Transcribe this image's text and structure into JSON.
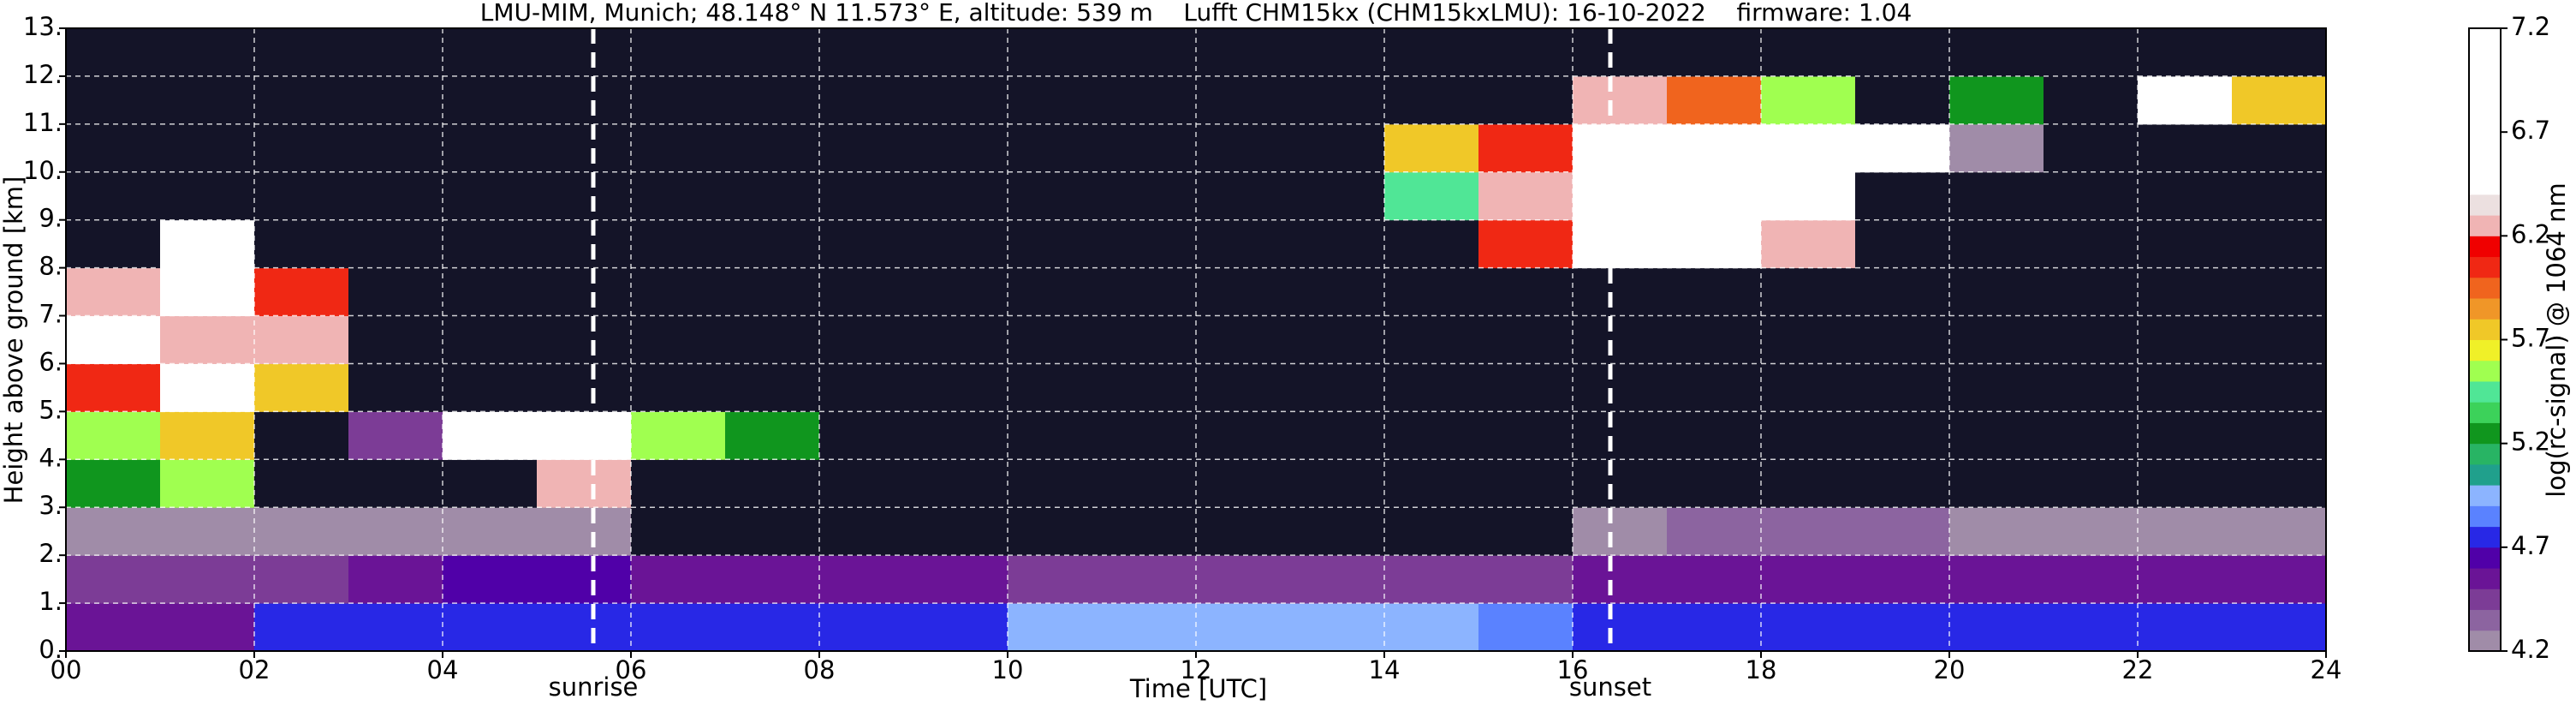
{
  "chart_data": {
    "type": "heatmap",
    "title": "LMU-MIM, Munich; 48.148° N 11.573° E, altitude: 539 m    Lufft CHM15kx (CHM15kxLMU): 16-10-2022    firmware: 1.04",
    "xlabel": "Time [UTC]",
    "ylabel": "Height above ground [km]",
    "colorbar_label": "log(rc-signal) @ 1064 nm",
    "xlim": [
      0,
      24
    ],
    "ylim": [
      0,
      13
    ],
    "xticks": [
      {
        "value": 0,
        "label": "00"
      },
      {
        "value": 2,
        "label": "02"
      },
      {
        "value": 4,
        "label": "04"
      },
      {
        "value": 6,
        "label": "06"
      },
      {
        "value": 8,
        "label": "08"
      },
      {
        "value": 10,
        "label": "10"
      },
      {
        "value": 12,
        "label": "12"
      },
      {
        "value": 14,
        "label": "14"
      },
      {
        "value": 16,
        "label": "16"
      },
      {
        "value": 18,
        "label": "18"
      },
      {
        "value": 20,
        "label": "20"
      },
      {
        "value": 22,
        "label": "22"
      },
      {
        "value": 24,
        "label": "24"
      }
    ],
    "yticks": [
      {
        "value": 0,
        "label": "0."
      },
      {
        "value": 1,
        "label": "1."
      },
      {
        "value": 2,
        "label": "2."
      },
      {
        "value": 3,
        "label": "3."
      },
      {
        "value": 4,
        "label": "4."
      },
      {
        "value": 5,
        "label": "5."
      },
      {
        "value": 6,
        "label": "6."
      },
      {
        "value": 7,
        "label": "7."
      },
      {
        "value": 8,
        "label": "8."
      },
      {
        "value": 9,
        "label": "9."
      },
      {
        "value": 10,
        "label": "10."
      },
      {
        "value": 11,
        "label": "11."
      },
      {
        "value": 12,
        "label": "12."
      },
      {
        "value": 13,
        "label": "13."
      }
    ],
    "grid": true,
    "clim": [
      4.2,
      7.2
    ],
    "cbar_ticks": [
      4.2,
      4.7,
      5.2,
      5.7,
      6.2,
      6.7,
      7.2
    ],
    "under_color": "#141428",
    "colormap": [
      "#a08ca8",
      "#8c64a0",
      "#7c3c96",
      "#6a1496",
      "#5000a8",
      "#2828e6",
      "#5a82ff",
      "#8cb4ff",
      "#20a08c",
      "#28b464",
      "#10961e",
      "#3cd25a",
      "#50e696",
      "#a0ff50",
      "#f0f028",
      "#f0c828",
      "#f09628",
      "#f0641e",
      "#f02814",
      "#f00000",
      "#f0b4b4",
      "#ece0e0",
      "#ffffff",
      "#ffffff",
      "#ffffff",
      "#ffffff",
      "#ffffff",
      "#ffffff",
      "#ffffff",
      "#ffffff"
    ],
    "xbins": [
      0,
      1,
      2,
      3,
      4,
      5,
      6,
      7,
      8,
      9,
      10,
      11,
      12,
      13,
      14,
      15,
      16,
      17,
      18,
      19,
      20,
      21,
      22,
      23,
      24
    ],
    "ybins": [
      0,
      1,
      2,
      3,
      4,
      5,
      6,
      7,
      8,
      9,
      10,
      11,
      12,
      13
    ],
    "z": [
      [
        4.6,
        4.6,
        4.7,
        4.7,
        4.7,
        4.7,
        4.7,
        4.7,
        4.7,
        4.8,
        4.9,
        4.95,
        5.0,
        4.95,
        4.9,
        4.85,
        4.8,
        4.7,
        4.7,
        4.7,
        4.7,
        4.8,
        4.8,
        4.7
      ],
      [
        4.5,
        4.5,
        4.45,
        4.6,
        4.65,
        4.65,
        4.6,
        4.6,
        4.55,
        4.55,
        4.5,
        4.5,
        4.5,
        4.5,
        4.45,
        4.45,
        4.6,
        4.55,
        4.55,
        4.55,
        4.55,
        4.55,
        4.55,
        4.55
      ],
      [
        4.3,
        4.3,
        4.3,
        4.25,
        4.25,
        4.25,
        4.1,
        4.1,
        4.1,
        4.1,
        4.1,
        4.1,
        4.1,
        4.1,
        4.1,
        4.1,
        4.3,
        4.35,
        4.35,
        4.35,
        4.3,
        4.3,
        4.3,
        4.3
      ],
      [
        5.3,
        5.6,
        4.0,
        4.0,
        4.0,
        6.3,
        4.0,
        4.0,
        4.0,
        4.0,
        4.0,
        4.0,
        4.0,
        4.0,
        4.0,
        4.0,
        4.0,
        4.0,
        4.0,
        4.0,
        4.0,
        4.0,
        4.0,
        4.0
      ],
      [
        5.6,
        5.8,
        4.0,
        4.5,
        6.9,
        6.9,
        5.6,
        5.2,
        4.0,
        4.0,
        4.0,
        4.0,
        4.0,
        4.0,
        4.0,
        4.0,
        4.0,
        4.0,
        4.0,
        4.0,
        4.0,
        4.0,
        4.0,
        4.0
      ],
      [
        6.0,
        6.4,
        5.8,
        4.0,
        4.0,
        4.0,
        4.0,
        4.0,
        4.0,
        4.0,
        4.0,
        4.0,
        4.0,
        4.0,
        4.0,
        4.0,
        4.0,
        4.0,
        4.0,
        4.0,
        4.0,
        4.0,
        4.0,
        4.0
      ],
      [
        6.4,
        6.2,
        6.2,
        4.0,
        4.0,
        4.0,
        4.0,
        4.0,
        4.0,
        4.0,
        4.0,
        4.0,
        4.0,
        4.0,
        4.0,
        4.0,
        4.0,
        4.0,
        4.0,
        4.0,
        4.0,
        4.0,
        4.0,
        4.0
      ],
      [
        6.3,
        6.8,
        6.0,
        4.0,
        4.0,
        4.0,
        4.0,
        4.0,
        4.0,
        4.0,
        4.0,
        4.0,
        4.0,
        4.0,
        4.0,
        4.0,
        4.0,
        4.0,
        4.0,
        4.0,
        4.0,
        4.0,
        4.0,
        4.0
      ],
      [
        4.0,
        6.5,
        4.0,
        4.0,
        4.0,
        4.0,
        4.0,
        4.0,
        4.0,
        4.0,
        4.0,
        4.0,
        4.0,
        4.0,
        4.0,
        6.0,
        6.8,
        6.6,
        6.3,
        4.0,
        4.0,
        4.0,
        4.0,
        4.0
      ],
      [
        4.0,
        4.0,
        4.0,
        4.0,
        4.0,
        4.0,
        4.0,
        4.0,
        4.0,
        4.0,
        4.0,
        4.0,
        4.0,
        4.0,
        5.5,
        6.2,
        7.0,
        6.9,
        6.6,
        4.0,
        4.0,
        4.0,
        4.0,
        4.0
      ],
      [
        4.0,
        4.0,
        4.0,
        4.0,
        4.0,
        4.0,
        4.0,
        4.0,
        4.0,
        4.0,
        4.0,
        4.0,
        4.0,
        4.0,
        5.8,
        6.0,
        7.1,
        7.0,
        6.9,
        6.8,
        4.3,
        4.0,
        4.0,
        4.0
      ],
      [
        4.0,
        4.0,
        4.0,
        4.0,
        4.0,
        4.0,
        4.0,
        4.0,
        4.0,
        4.0,
        4.0,
        4.0,
        4.0,
        4.0,
        4.0,
        4.0,
        6.3,
        5.9,
        5.6,
        4.0,
        5.3,
        4.0,
        6.5,
        5.8
      ],
      [
        4.0,
        4.0,
        4.0,
        4.0,
        4.0,
        4.0,
        4.0,
        4.0,
        4.0,
        4.0,
        4.0,
        4.0,
        4.0,
        4.0,
        4.0,
        4.0,
        4.0,
        4.0,
        4.0,
        4.0,
        4.0,
        4.0,
        4.0,
        4.0
      ]
    ],
    "annotations": [
      {
        "x": 5.6,
        "label": "sunrise"
      },
      {
        "x": 16.4,
        "label": "sunset"
      }
    ]
  }
}
